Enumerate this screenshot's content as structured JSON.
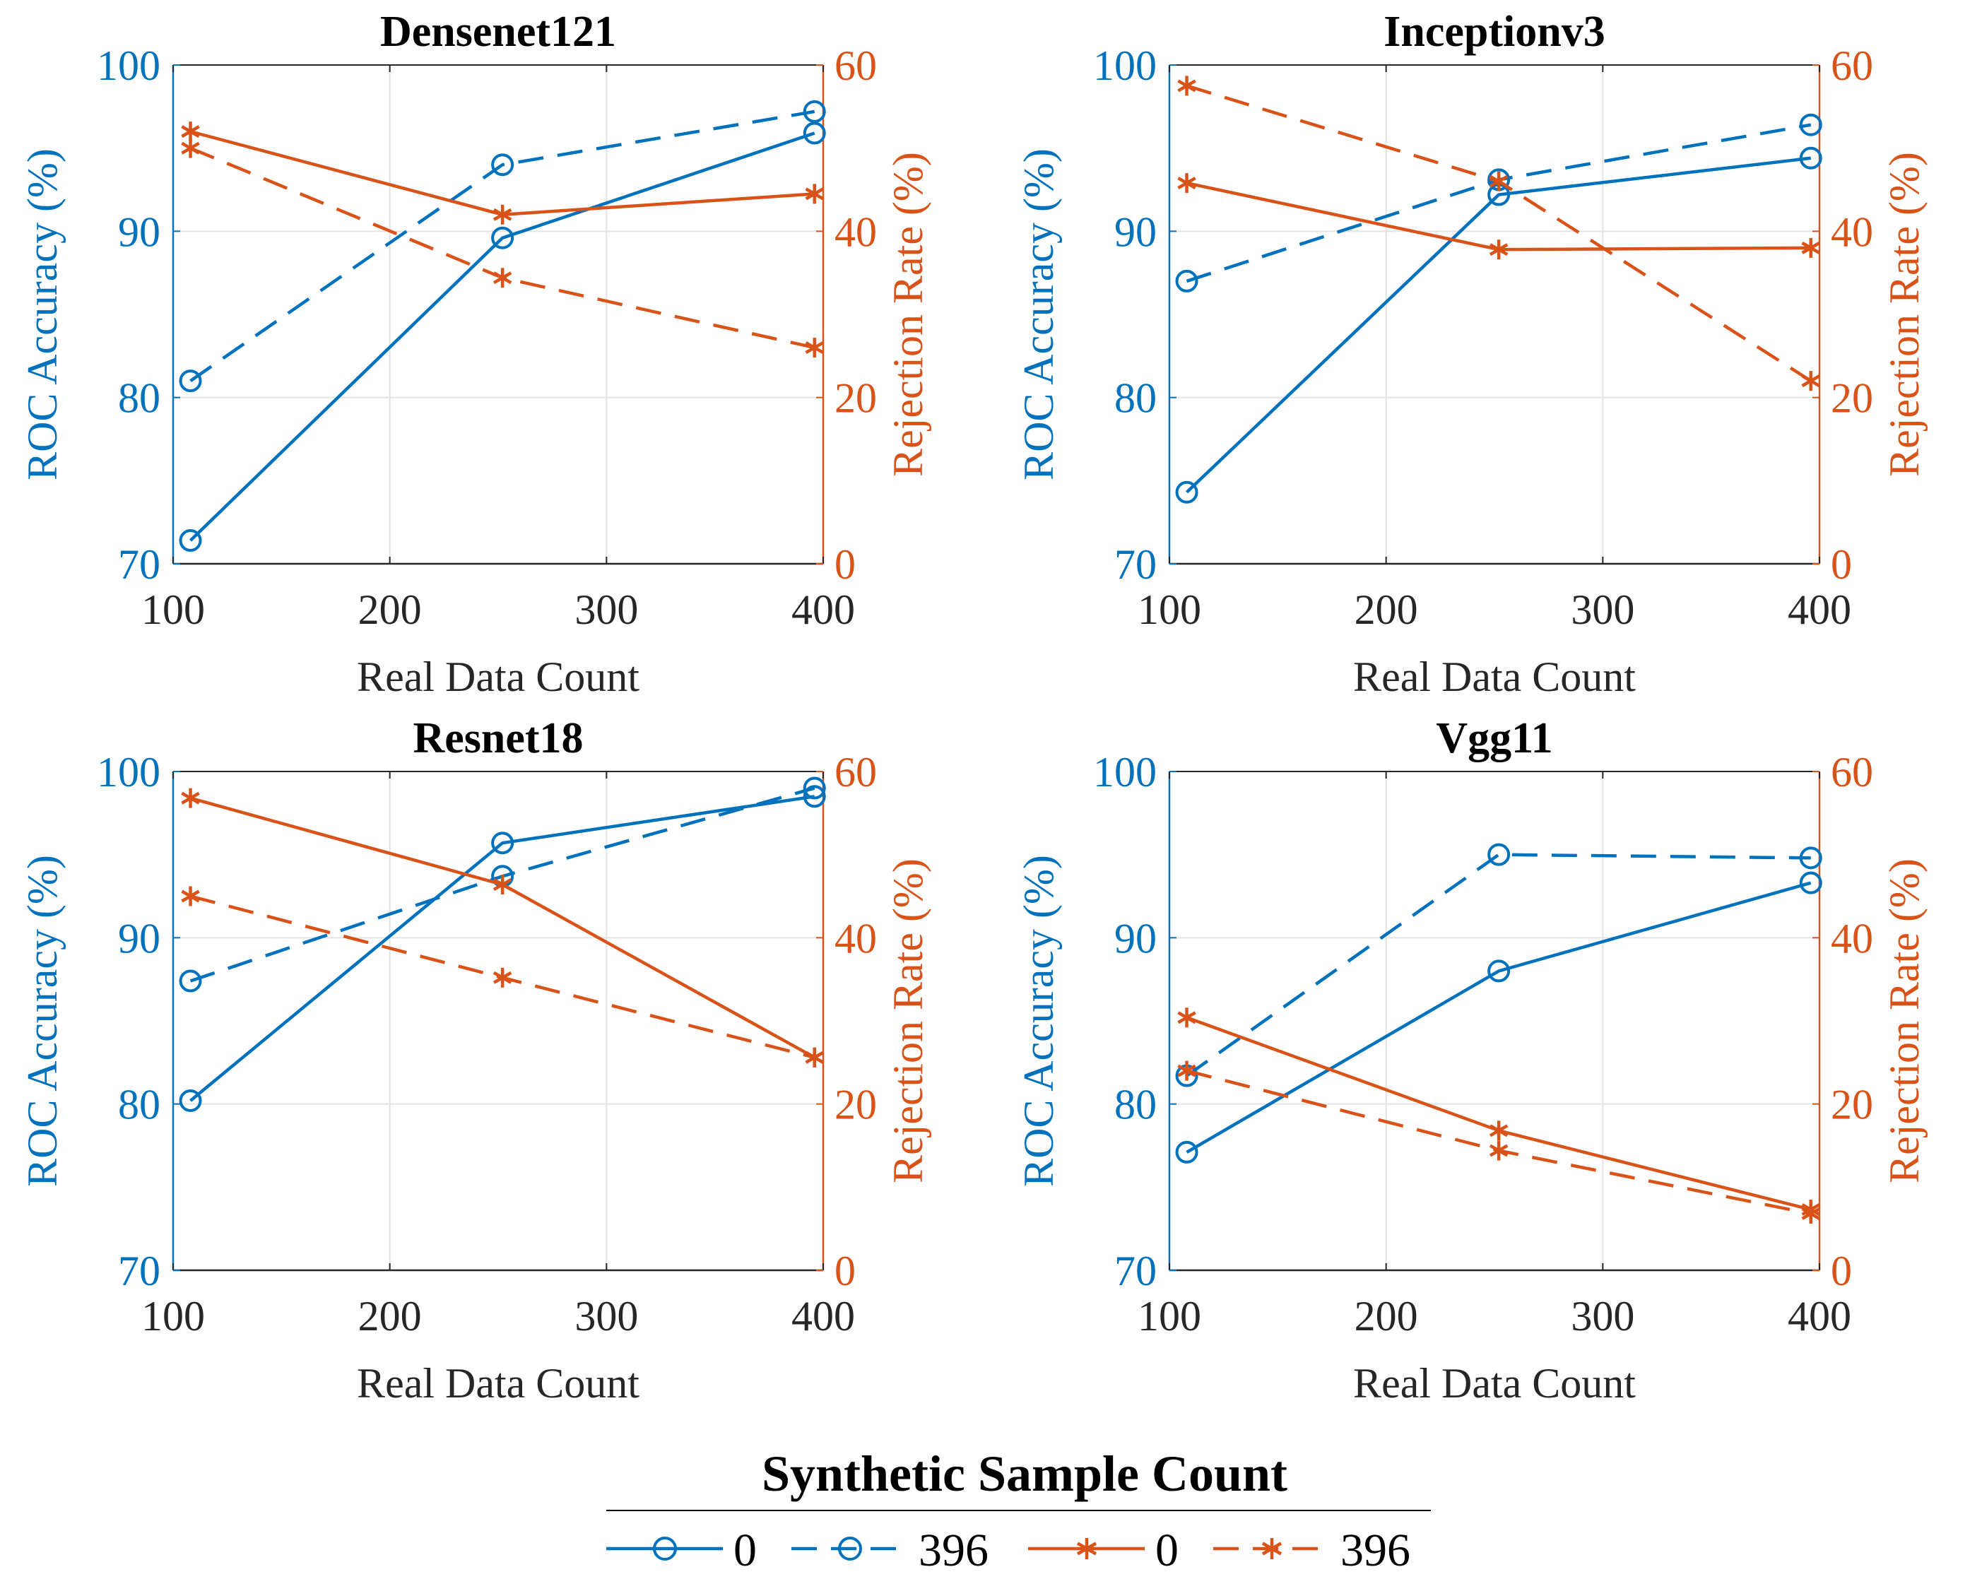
{
  "colors": {
    "blue": "#0072BD",
    "orange": "#D95319",
    "grid": "#E3E3E3",
    "text": "#262626"
  },
  "chart_data": [
    {
      "type": "line",
      "title": "Densenet121",
      "xlabel": "Real Data Count",
      "ylabel_left": "ROC Accuracy (%)",
      "ylabel_right": "Rejection Rate (%)",
      "xlim": [
        100,
        400
      ],
      "xticks": [
        100,
        200,
        300,
        400
      ],
      "ylim_left": [
        70,
        100
      ],
      "yticks_left": [
        70,
        80,
        90,
        100
      ],
      "ylim_right": [
        0,
        60
      ],
      "yticks_right": [
        0,
        20,
        40,
        60
      ],
      "x": [
        108,
        252,
        396
      ],
      "series": [
        {
          "name": "0",
          "axis": "left",
          "style": "solid",
          "marker": "circle",
          "values": [
            71.4,
            89.6,
            95.9
          ]
        },
        {
          "name": "396",
          "axis": "left",
          "style": "dashed",
          "marker": "circle",
          "values": [
            81.0,
            94.0,
            97.2
          ]
        },
        {
          "name": "0",
          "axis": "right",
          "style": "solid",
          "marker": "asterisk",
          "values": [
            52.0,
            42.0,
            44.5
          ]
        },
        {
          "name": "396",
          "axis": "right",
          "style": "dashed",
          "marker": "asterisk",
          "values": [
            50.0,
            34.4,
            26.0
          ]
        }
      ]
    },
    {
      "type": "line",
      "title": "Inceptionv3",
      "xlabel": "Real Data Count",
      "ylabel_left": "ROC Accuracy (%)",
      "ylabel_right": "Rejection Rate (%)",
      "xlim": [
        100,
        400
      ],
      "xticks": [
        100,
        200,
        300,
        400
      ],
      "ylim_left": [
        70,
        100
      ],
      "yticks_left": [
        70,
        80,
        90,
        100
      ],
      "ylim_right": [
        0,
        60
      ],
      "yticks_right": [
        0,
        20,
        40,
        60
      ],
      "x": [
        108,
        252,
        396
      ],
      "series": [
        {
          "name": "0",
          "axis": "left",
          "style": "solid",
          "marker": "circle",
          "values": [
            74.3,
            92.2,
            94.4
          ]
        },
        {
          "name": "396",
          "axis": "left",
          "style": "dashed",
          "marker": "circle",
          "values": [
            87.0,
            93.1,
            96.4
          ]
        },
        {
          "name": "0",
          "axis": "right",
          "style": "solid",
          "marker": "asterisk",
          "values": [
            45.8,
            37.8,
            38.0
          ]
        },
        {
          "name": "396",
          "axis": "right",
          "style": "dashed",
          "marker": "asterisk",
          "values": [
            57.5,
            46.0,
            22.0
          ]
        }
      ]
    },
    {
      "type": "line",
      "title": "Resnet18",
      "xlabel": "Real Data Count",
      "ylabel_left": "ROC Accuracy (%)",
      "ylabel_right": "Rejection Rate (%)",
      "xlim": [
        100,
        400
      ],
      "xticks": [
        100,
        200,
        300,
        400
      ],
      "ylim_left": [
        70,
        100
      ],
      "yticks_left": [
        70,
        80,
        90,
        100
      ],
      "ylim_right": [
        0,
        60
      ],
      "yticks_right": [
        0,
        20,
        40,
        60
      ],
      "x": [
        108,
        252,
        396
      ],
      "series": [
        {
          "name": "0",
          "axis": "left",
          "style": "solid",
          "marker": "circle",
          "values": [
            80.2,
            95.7,
            98.5
          ]
        },
        {
          "name": "396",
          "axis": "left",
          "style": "dashed",
          "marker": "circle",
          "values": [
            87.4,
            93.7,
            99.0
          ]
        },
        {
          "name": "0",
          "axis": "right",
          "style": "solid",
          "marker": "asterisk",
          "values": [
            56.8,
            46.4,
            25.6
          ]
        },
        {
          "name": "396",
          "axis": "right",
          "style": "dashed",
          "marker": "asterisk",
          "values": [
            45.0,
            35.2,
            25.6
          ]
        }
      ]
    },
    {
      "type": "line",
      "title": "Vgg11",
      "xlabel": "Real Data Count",
      "ylabel_left": "ROC Accuracy (%)",
      "ylabel_right": "Rejection Rate (%)",
      "xlim": [
        100,
        400
      ],
      "xticks": [
        100,
        200,
        300,
        400
      ],
      "ylim_left": [
        70,
        100
      ],
      "yticks_left": [
        70,
        80,
        90,
        100
      ],
      "ylim_right": [
        0,
        60
      ],
      "yticks_right": [
        0,
        20,
        40,
        60
      ],
      "x": [
        108,
        252,
        396
      ],
      "series": [
        {
          "name": "0",
          "axis": "left",
          "style": "solid",
          "marker": "circle",
          "values": [
            77.1,
            88.0,
            93.3
          ]
        },
        {
          "name": "396",
          "axis": "left",
          "style": "dashed",
          "marker": "circle",
          "values": [
            81.7,
            95.0,
            94.8
          ]
        },
        {
          "name": "0",
          "axis": "right",
          "style": "solid",
          "marker": "asterisk",
          "values": [
            30.4,
            16.8,
            7.3
          ]
        },
        {
          "name": "396",
          "axis": "right",
          "style": "dashed",
          "marker": "asterisk",
          "values": [
            24.0,
            14.4,
            6.8
          ]
        }
      ]
    }
  ],
  "legend": {
    "title": "Synthetic Sample Count",
    "entries": [
      {
        "label": "0",
        "color": "blue",
        "style": "solid",
        "marker": "circle"
      },
      {
        "label": "396",
        "color": "blue",
        "style": "dashed",
        "marker": "circle"
      },
      {
        "label": "0",
        "color": "orange",
        "style": "solid",
        "marker": "asterisk"
      },
      {
        "label": "396",
        "color": "orange",
        "style": "dashed",
        "marker": "asterisk"
      }
    ]
  }
}
